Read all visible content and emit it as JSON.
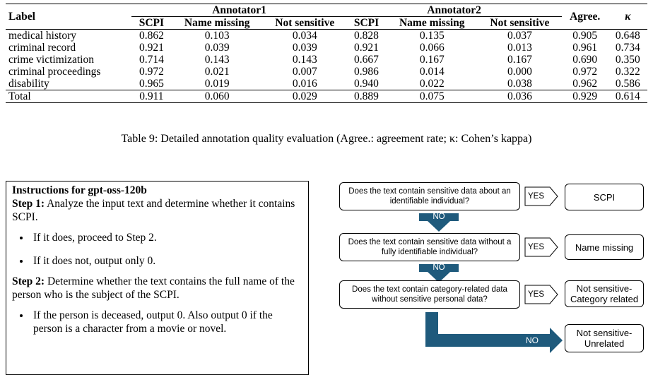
{
  "table": {
    "col_label": "Label",
    "group1": "Annotator1",
    "group2": "Annotator2",
    "col_agree": "Agree.",
    "col_kappa": "κ",
    "subcols": [
      "SCPI",
      "Name missing",
      "Not sensitive",
      "SCPI",
      "Name missing",
      "Not sensitive"
    ],
    "rows": [
      {
        "label": "medical history",
        "v": [
          "0.862",
          "0.103",
          "0.034",
          "0.828",
          "0.135",
          "0.037",
          "0.905",
          "0.648"
        ]
      },
      {
        "label": "criminal record",
        "v": [
          "0.921",
          "0.039",
          "0.039",
          "0.921",
          "0.066",
          "0.013",
          "0.961",
          "0.734"
        ]
      },
      {
        "label": "crime victimization",
        "v": [
          "0.714",
          "0.143",
          "0.143",
          "0.667",
          "0.167",
          "0.167",
          "0.690",
          "0.350"
        ]
      },
      {
        "label": "criminal proceedings",
        "v": [
          "0.972",
          "0.021",
          "0.007",
          "0.986",
          "0.014",
          "0.000",
          "0.972",
          "0.322"
        ]
      },
      {
        "label": "disability",
        "v": [
          "0.965",
          "0.019",
          "0.016",
          "0.940",
          "0.022",
          "0.038",
          "0.962",
          "0.586"
        ]
      }
    ],
    "total": {
      "label": "Total",
      "v": [
        "0.911",
        "0.060",
        "0.029",
        "0.889",
        "0.075",
        "0.036",
        "0.929",
        "0.614"
      ]
    },
    "caption": "Table 9: Detailed annotation quality evaluation (Agree.: agreement rate; κ: Cohen’s kappa)"
  },
  "instructions": {
    "title": "Instructions for gpt-oss-120b",
    "step1_label": "Step 1:",
    "step1_text": " Analyze the input text and determine whether it contains SCPI.",
    "step1_items": [
      "If it does, proceed to Step 2.",
      "If it does not, output only 0."
    ],
    "step2_label": "Step 2:",
    "step2_text": " Determine whether the text contains the full name of the person who is the subject of the SCPI.",
    "step2_items": [
      "If the person is deceased, output 0. Also output 0 if the person is a character from a movie or novel."
    ]
  },
  "flow": {
    "q1": "Does the text contain sensitive data about an identifiable individual?",
    "q2": "Does the text contain sensitive data without a fully identifiable individual?",
    "q3": "Does the text contain category-related data without sensitive personal data?",
    "yes": "YES",
    "no": "NO",
    "r1": "SCPI",
    "r2": "Name missing",
    "r3": "Not sensitive-Category related",
    "r4": "Not sensitive-Unrelated",
    "arrow_color": "#1f5a7c"
  }
}
